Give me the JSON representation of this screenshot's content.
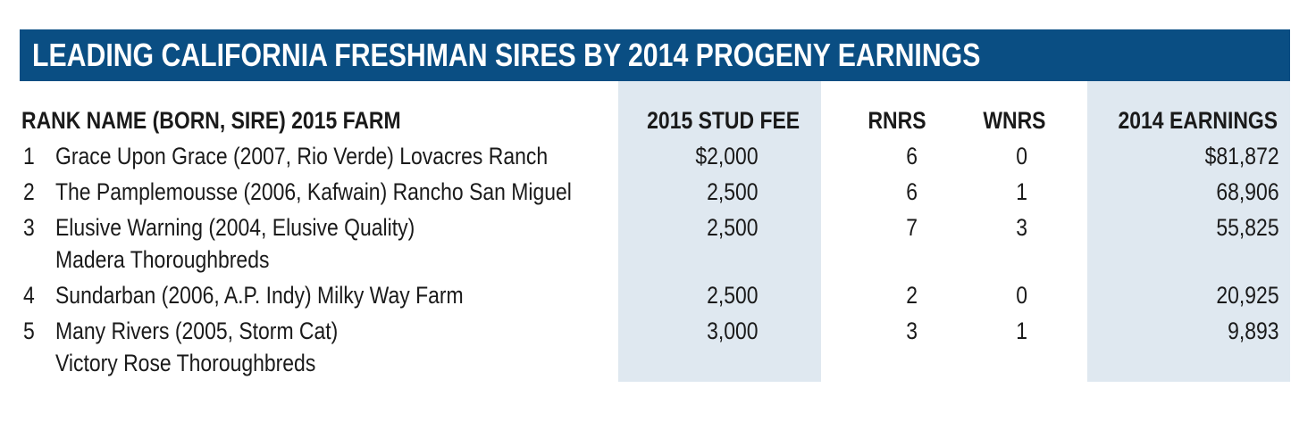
{
  "title": "LEADING CALIFORNIA FRESHMAN SIRES BY 2014 PROGENY EARNINGS",
  "colors": {
    "title_bar": "#0a4e83",
    "shade": "#dfe8f0",
    "title_text": "#ffffff"
  },
  "headers": {
    "rank_name": "RANK  NAME (BORN, SIRE) 2015 FARM",
    "stud_fee": "2015 STUD FEE",
    "rnrs": "RNRS",
    "wnrs": "WNRS",
    "earnings": "2014 EARNINGS"
  },
  "rows": [
    {
      "rank": "1",
      "name": "Grace Upon Grace (2007, Rio Verde) Lovacres Ranch",
      "name2": "",
      "fee": "$2,000",
      "rnrs": "6",
      "wnrs": "0",
      "earnings": "$81,872"
    },
    {
      "rank": "2",
      "name": "The Pamplemousse (2006, Kafwain) Rancho San Miguel",
      "name2": "",
      "fee": "2,500",
      "rnrs": "6",
      "wnrs": "1",
      "earnings": "68,906"
    },
    {
      "rank": "3",
      "name": "Elusive Warning (2004, Elusive Quality)",
      "name2": "Madera Thoroughbreds",
      "fee": "2,500",
      "rnrs": "7",
      "wnrs": "3",
      "earnings": "55,825"
    },
    {
      "rank": "4",
      "name": "Sundarban (2006, A.P. Indy) Milky Way Farm",
      "name2": "",
      "fee": "2,500",
      "rnrs": "2",
      "wnrs": "0",
      "earnings": "20,925"
    },
    {
      "rank": "5",
      "name": "Many Rivers (2005, Storm Cat)",
      "name2": "Victory Rose Thoroughbreds",
      "fee": "3,000",
      "rnrs": "3",
      "wnrs": "1",
      "earnings": "9,893"
    }
  ]
}
